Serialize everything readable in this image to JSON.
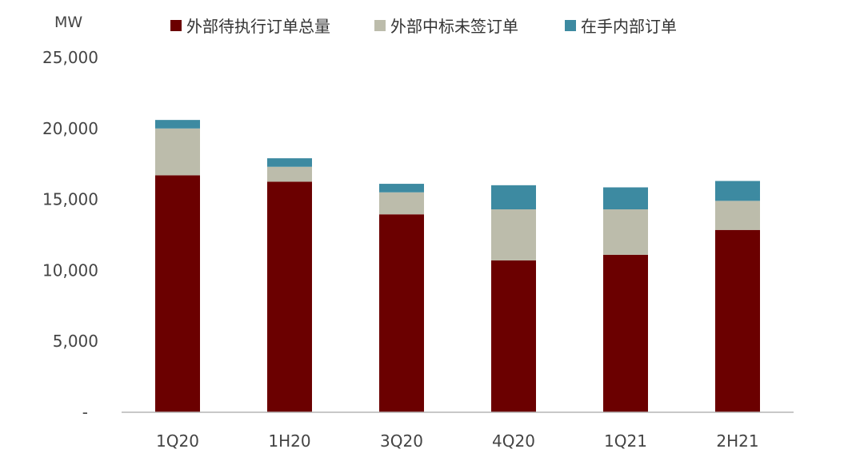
{
  "chart_data": {
    "type": "bar",
    "stacked": true,
    "y_unit": "MW",
    "categories": [
      "1Q20",
      "1H20",
      "3Q20",
      "4Q20",
      "1Q21",
      "2H21"
    ],
    "series": [
      {
        "name": "外部待执行订单总量",
        "color": "#6b0000",
        "values": [
          16700,
          16250,
          13950,
          10700,
          11100,
          12850
        ]
      },
      {
        "name": "外部中标未签订单",
        "color": "#bcbcab",
        "values": [
          3300,
          1050,
          1550,
          3600,
          3200,
          2050
        ]
      },
      {
        "name": "在手内部订单",
        "color": "#3d8aa1",
        "values": [
          600,
          600,
          600,
          1700,
          1550,
          1400
        ]
      }
    ],
    "ylim": [
      0,
      25000
    ],
    "y_ticks": [
      0,
      5000,
      10000,
      15000,
      20000,
      25000
    ],
    "y_tick_labels": [
      "-",
      "5,000",
      "10,000",
      "15,000",
      "20,000",
      "25,000"
    ],
    "legend_position": "top",
    "grid": false
  }
}
